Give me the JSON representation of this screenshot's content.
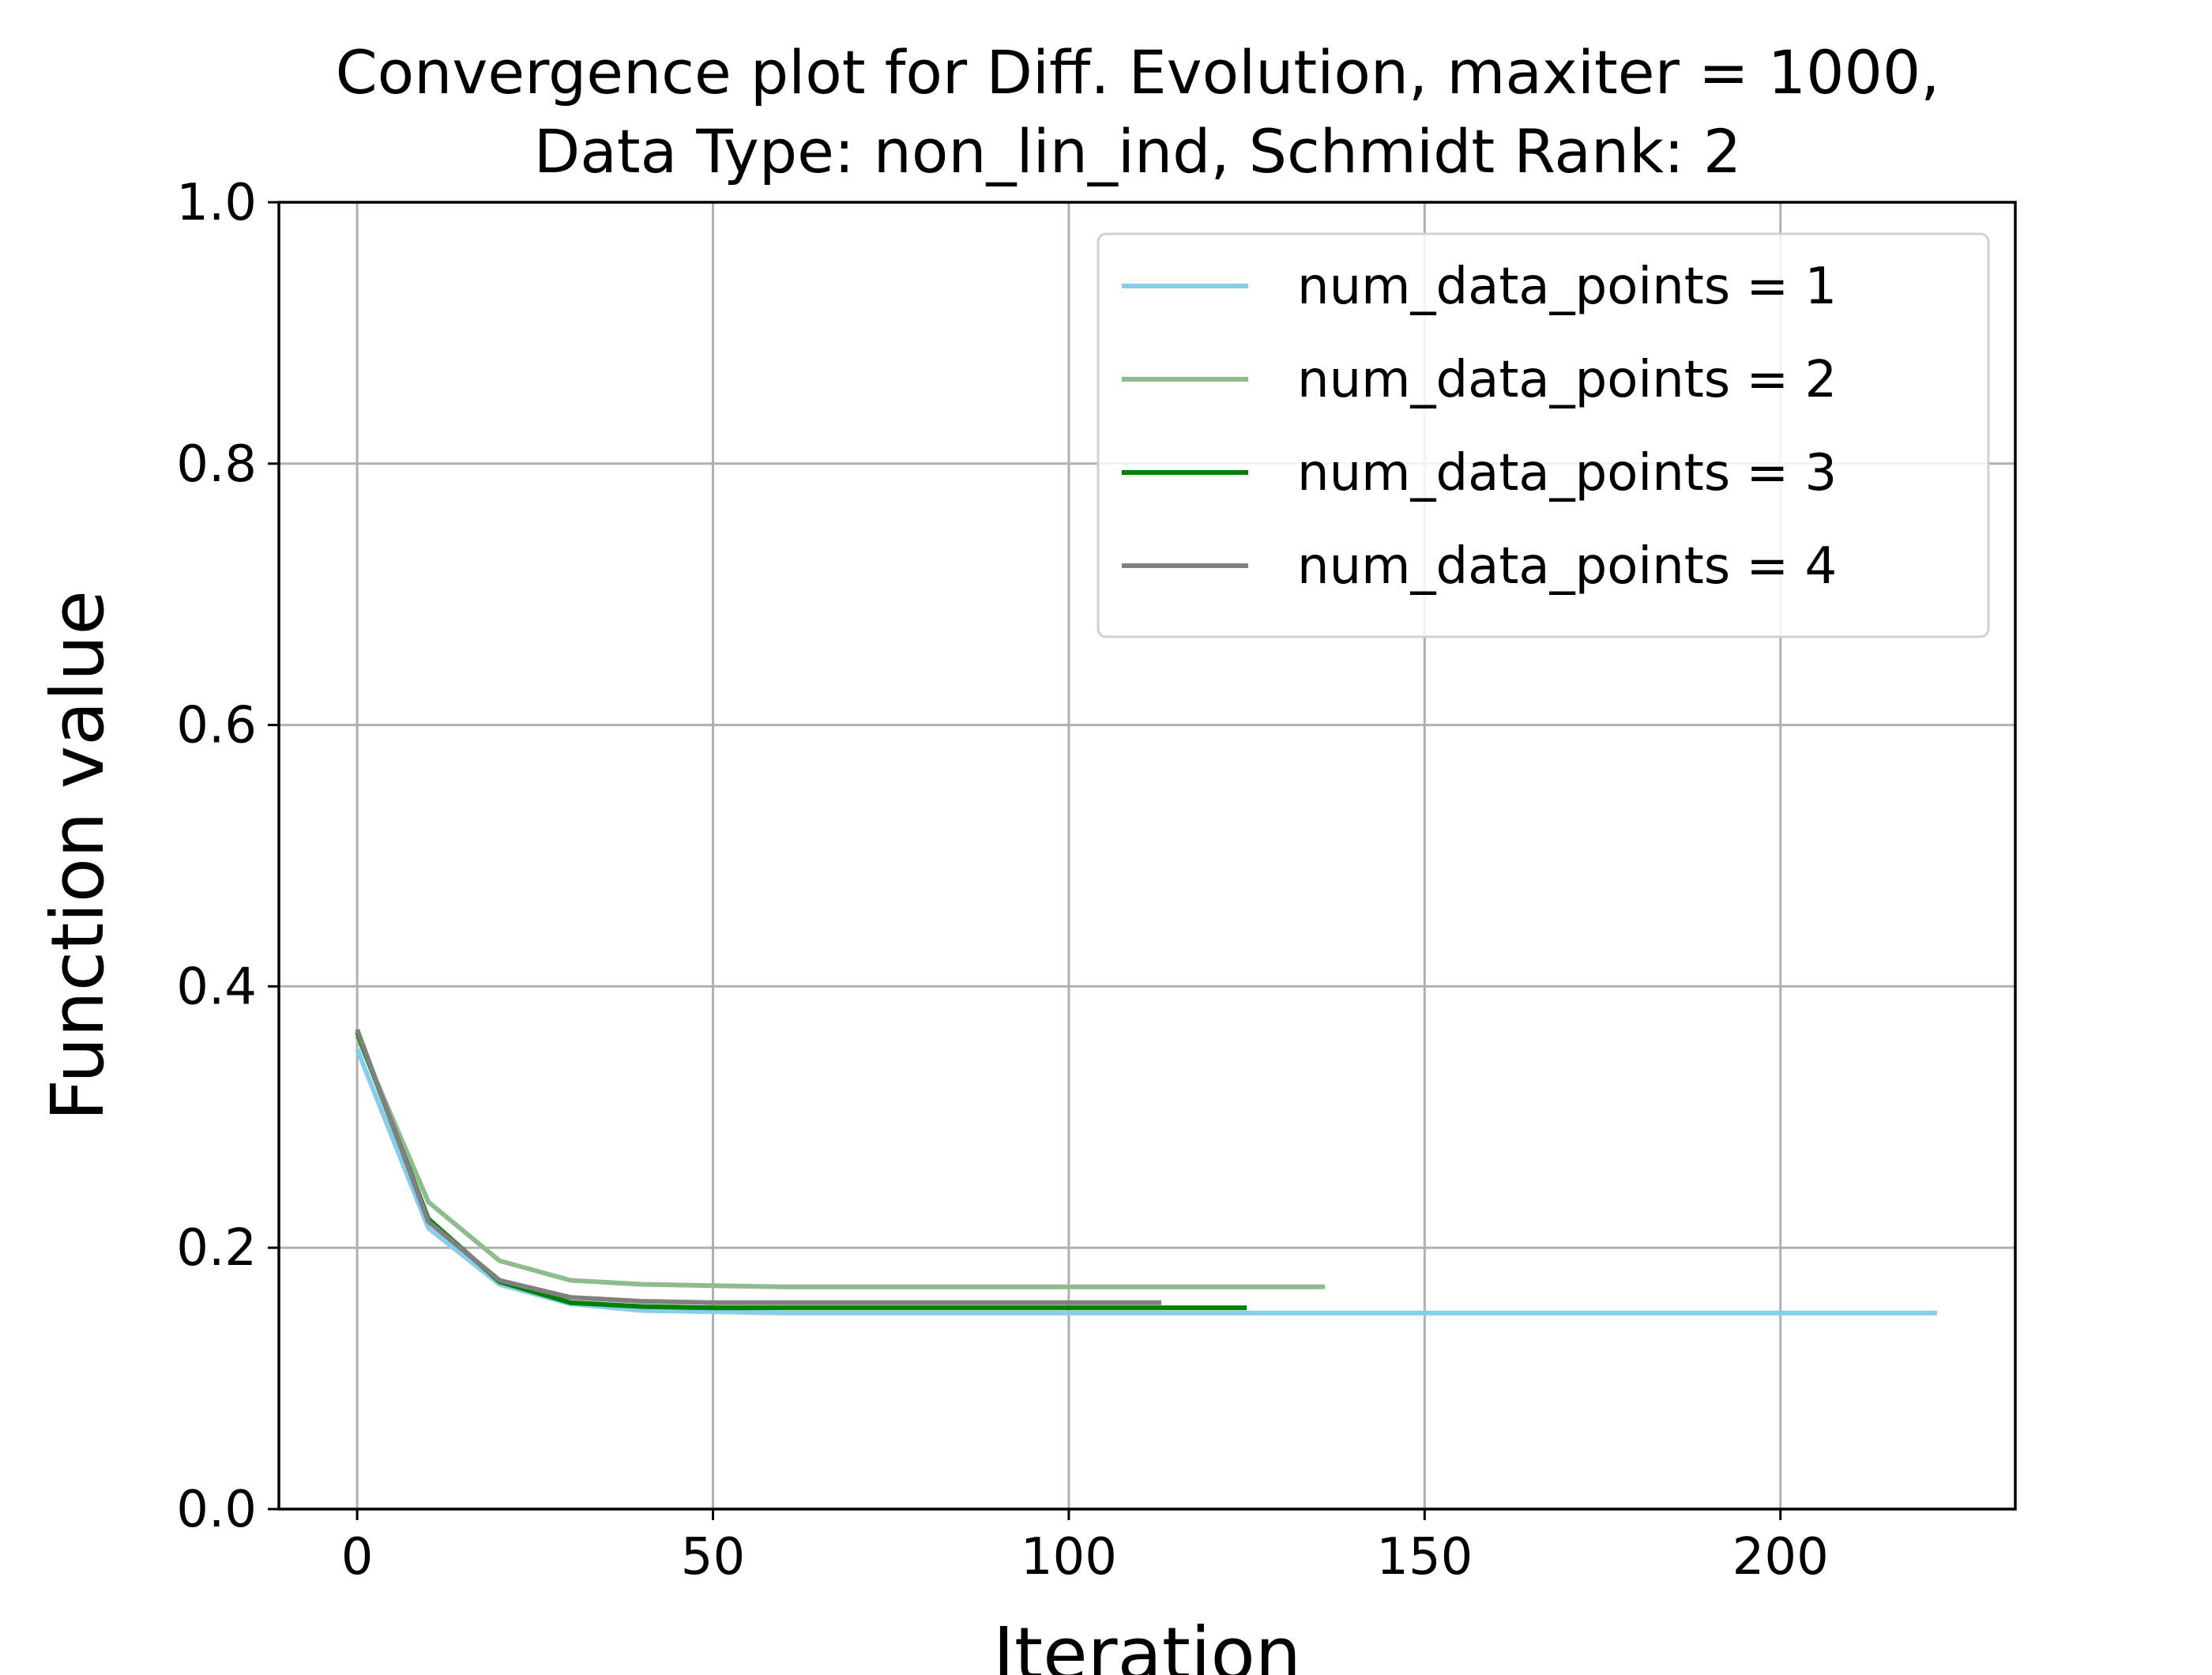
{
  "chart_data": {
    "type": "line",
    "title": [
      "Convergence plot for Diff. Evolution, maxiter = 1000,",
      "Data Type: non_lin_ind, Schmidt Rank: 2"
    ],
    "xlabel": "Iteration",
    "ylabel": "Function value",
    "xlim": [
      -11,
      233
    ],
    "ylim": [
      0.0,
      1.0
    ],
    "xticks": [
      0,
      50,
      100,
      150,
      200
    ],
    "yticks": [
      0.0,
      0.2,
      0.4,
      0.6,
      0.8,
      1.0
    ],
    "xtick_labels": [
      "0",
      "50",
      "100",
      "150",
      "200"
    ],
    "ytick_labels": [
      "0.0",
      "0.2",
      "0.4",
      "0.6",
      "0.8",
      "1.0"
    ],
    "grid": true,
    "legend_position": "top-right",
    "series": [
      {
        "name": "num_data_points = 1",
        "color": "#87ceeb",
        "x": [
          0,
          10,
          20,
          30,
          40,
          50,
          60,
          80,
          100,
          125,
          150,
          175,
          200,
          222
        ],
        "y": [
          0.352,
          0.215,
          0.172,
          0.157,
          0.152,
          0.151,
          0.15,
          0.15,
          0.15,
          0.15,
          0.15,
          0.15,
          0.15,
          0.15
        ]
      },
      {
        "name": "num_data_points = 2",
        "color": "#8fbc8f",
        "x": [
          0,
          10,
          20,
          30,
          40,
          50,
          60,
          80,
          100,
          120,
          136
        ],
        "y": [
          0.362,
          0.235,
          0.19,
          0.175,
          0.172,
          0.171,
          0.17,
          0.17,
          0.17,
          0.17,
          0.17
        ]
      },
      {
        "name": "num_data_points = 3",
        "color": "#008000",
        "x": [
          0,
          10,
          20,
          30,
          40,
          50,
          60,
          80,
          100,
          125
        ],
        "y": [
          0.365,
          0.222,
          0.174,
          0.158,
          0.155,
          0.154,
          0.154,
          0.154,
          0.154,
          0.154
        ]
      },
      {
        "name": "num_data_points = 4",
        "color": "#808080",
        "x": [
          0,
          10,
          20,
          30,
          40,
          50,
          60,
          80,
          100,
          113
        ],
        "y": [
          0.367,
          0.22,
          0.175,
          0.162,
          0.159,
          0.158,
          0.158,
          0.158,
          0.158,
          0.158
        ]
      }
    ]
  }
}
